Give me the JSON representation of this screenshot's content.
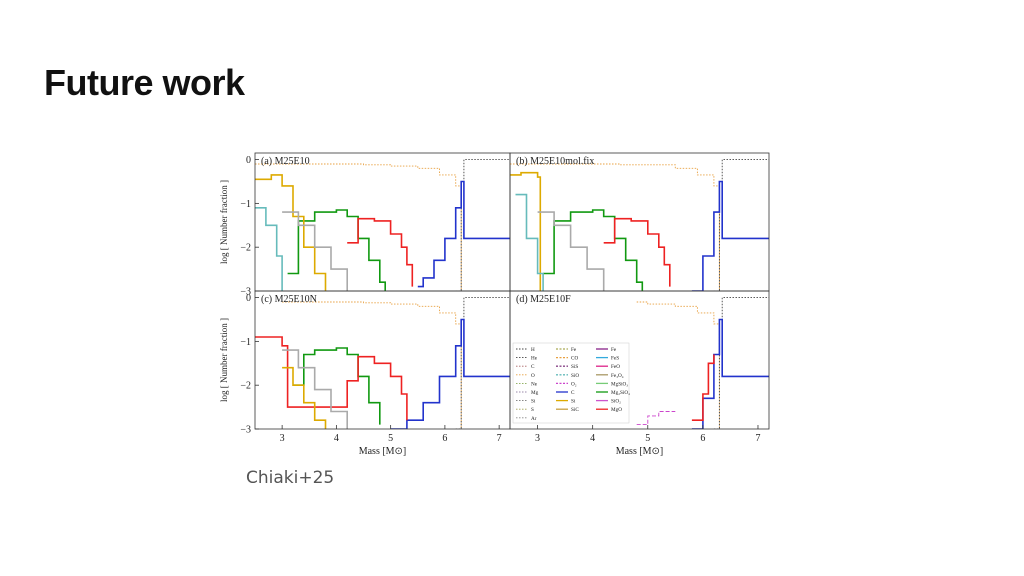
{
  "slide": {
    "title": "Future work",
    "credit": "Chiaki+25"
  },
  "colors": {
    "H": "#444444",
    "He": "#444444",
    "C": "#aa6666",
    "O": "#e8a040",
    "Ne": "#88aa55",
    "Mg": "#9988aa",
    "Si": "#777777",
    "S": "#a0a050",
    "Ar": "#888888",
    "Fe": "#aaaa55",
    "CO": "#e8a040",
    "SiS": "#884488",
    "SiO": "#66bbbb",
    "O2": "#cc44cc",
    "Cdust": "#2233cc",
    "Sidust": "#ddaa00",
    "SiC": "#c8a040",
    "Fedust": "#882288",
    "FeS": "#33aadd",
    "FeO": "#dd2288",
    "Fe3O4": "#aa9966",
    "MgSiO3": "#77cc77",
    "Mg2SiO4": "#119911",
    "SiO2": "#cc55cc",
    "MgO": "#ee2222"
  },
  "chart_data": [
    {
      "type": "line",
      "title": "(a) M25E10",
      "xlabel": "Mass [M⊙]",
      "ylabel": "log [ Number fraction ]",
      "xlim": [
        2.5,
        7.2
      ],
      "ylim": [
        -3,
        0.15
      ],
      "yticks": [
        "0",
        "−1",
        "−2",
        "−3"
      ],
      "series": [
        {
          "name": "CO",
          "style": "dotted",
          "color": "#e8a040",
          "x": [
            2.5,
            3.0,
            3.1,
            3.5,
            4.5,
            5.0,
            5.5,
            5.9,
            6.2,
            6.3
          ],
          "y": [
            -0.1,
            -0.1,
            -0.1,
            -0.1,
            -0.12,
            -0.15,
            -0.2,
            -0.35,
            -0.6,
            -3.0
          ]
        },
        {
          "name": "He",
          "style": "dotted",
          "color": "#444444",
          "x": [
            6.2,
            6.3,
            6.35,
            7.2
          ],
          "y": [
            -3.0,
            -0.5,
            0.0,
            0.0
          ]
        },
        {
          "name": "C",
          "style": "solid",
          "color": "#2233cc",
          "x": [
            5.5,
            5.6,
            5.8,
            6.0,
            6.2,
            6.3,
            6.35,
            7.2
          ],
          "y": [
            -2.9,
            -2.7,
            -2.3,
            -1.8,
            -1.1,
            -0.5,
            -1.8,
            -1.8
          ]
        },
        {
          "name": "Mg2SiO4",
          "style": "solid",
          "color": "#119911",
          "x": [
            3.1,
            3.3,
            3.6,
            4.0,
            4.2,
            4.4,
            4.6,
            4.8,
            4.9
          ],
          "y": [
            -2.6,
            -1.4,
            -1.2,
            -1.15,
            -1.3,
            -1.8,
            -2.3,
            -2.8,
            -3.0
          ]
        },
        {
          "name": "MgO",
          "style": "solid",
          "color": "#ee2222",
          "x": [
            4.2,
            4.4,
            4.7,
            5.0,
            5.2,
            5.3,
            5.4
          ],
          "y": [
            -1.9,
            -1.35,
            -1.4,
            -1.7,
            -2.0,
            -2.4,
            -2.9
          ]
        },
        {
          "name": "Si",
          "style": "solid",
          "color": "#ddaa00",
          "x": [
            2.5,
            2.8,
            3.0,
            3.2,
            3.4,
            3.6,
            3.8
          ],
          "y": [
            -0.45,
            -0.35,
            -0.6,
            -1.3,
            -2.0,
            -2.6,
            -3.0
          ]
        },
        {
          "name": "SiO",
          "style": "solid",
          "color": "#66bbbb",
          "x": [
            2.5,
            2.7,
            2.9,
            3.0
          ],
          "y": [
            -1.1,
            -1.5,
            -2.2,
            -3.0
          ]
        },
        {
          "name": "Fe3O4",
          "style": "solid",
          "color": "#aaaaaa",
          "x": [
            3.0,
            3.3,
            3.6,
            3.9,
            4.2
          ],
          "y": [
            -1.2,
            -1.5,
            -2.0,
            -2.5,
            -3.0
          ]
        }
      ]
    },
    {
      "type": "line",
      "title": "(b) M25E10mol.fix",
      "xlabel": "Mass [M⊙]",
      "xlim": [
        2.5,
        7.2
      ],
      "ylim": [
        -3,
        0.15
      ],
      "series": [
        {
          "name": "CO",
          "style": "dotted",
          "color": "#e8a040",
          "x": [
            2.5,
            3.0,
            3.5,
            4.5,
            5.5,
            5.9,
            6.2,
            6.3
          ],
          "y": [
            -0.1,
            -0.1,
            -0.1,
            -0.12,
            -0.2,
            -0.35,
            -0.6,
            -3.0
          ]
        },
        {
          "name": "He",
          "style": "dotted",
          "color": "#444444",
          "x": [
            6.2,
            6.3,
            6.35,
            7.2
          ],
          "y": [
            -3.0,
            -0.5,
            0.0,
            0.0
          ]
        },
        {
          "name": "C",
          "style": "solid",
          "color": "#2233cc",
          "x": [
            5.8,
            6.0,
            6.2,
            6.3,
            6.35,
            7.2
          ],
          "y": [
            -3.0,
            -2.2,
            -1.2,
            -0.5,
            -1.8,
            -1.8
          ]
        },
        {
          "name": "Mg2SiO4",
          "style": "solid",
          "color": "#119911",
          "x": [
            3.1,
            3.3,
            3.6,
            4.0,
            4.2,
            4.4,
            4.6,
            4.8,
            4.9
          ],
          "y": [
            -2.6,
            -1.4,
            -1.2,
            -1.15,
            -1.3,
            -1.8,
            -2.3,
            -2.8,
            -3.0
          ]
        },
        {
          "name": "MgO",
          "style": "solid",
          "color": "#ee2222",
          "x": [
            4.2,
            4.4,
            4.7,
            5.0,
            5.2,
            5.3,
            5.4
          ],
          "y": [
            -1.9,
            -1.35,
            -1.4,
            -1.7,
            -2.0,
            -2.4,
            -2.9
          ]
        },
        {
          "name": "Si",
          "style": "solid",
          "color": "#ddaa00",
          "x": [
            2.5,
            2.7,
            2.9,
            3.0,
            3.05
          ],
          "y": [
            -0.35,
            -0.3,
            -0.3,
            -0.4,
            -3.0
          ]
        },
        {
          "name": "SiO",
          "style": "solid",
          "color": "#66bbbb",
          "x": [
            2.6,
            2.8,
            3.0,
            3.1
          ],
          "y": [
            -0.8,
            -1.8,
            -2.6,
            -3.0
          ]
        },
        {
          "name": "Fe3O4",
          "style": "solid",
          "color": "#aaaaaa",
          "x": [
            3.0,
            3.3,
            3.6,
            3.9,
            4.2
          ],
          "y": [
            -1.2,
            -1.5,
            -2.0,
            -2.5,
            -3.0
          ]
        }
      ]
    },
    {
      "type": "line",
      "title": "(c) M25E10N",
      "xlabel": "Mass [M⊙]",
      "ylabel": "log [ Number fraction ]",
      "xlim": [
        2.5,
        7.2
      ],
      "ylim": [
        -3,
        0.15
      ],
      "xticks": [
        "3",
        "4",
        "5",
        "6",
        "7"
      ],
      "yticks": [
        "0",
        "−1",
        "−2",
        "−3"
      ],
      "series": [
        {
          "name": "CO",
          "style": "dotted",
          "color": "#e8a040",
          "x": [
            3.0,
            3.5,
            4.5,
            5.0,
            5.5,
            5.9,
            6.2,
            6.3
          ],
          "y": [
            -0.1,
            -0.1,
            -0.12,
            -0.15,
            -0.2,
            -0.35,
            -0.6,
            -3.0
          ]
        },
        {
          "name": "He",
          "style": "dotted",
          "color": "#444444",
          "x": [
            6.2,
            6.3,
            6.35,
            7.2
          ],
          "y": [
            -3.0,
            -0.5,
            0.0,
            0.0
          ]
        },
        {
          "name": "C",
          "style": "solid",
          "color": "#2233cc",
          "x": [
            5.0,
            5.3,
            5.6,
            5.9,
            6.2,
            6.3,
            6.35,
            7.2
          ],
          "y": [
            -3.0,
            -2.8,
            -2.4,
            -1.8,
            -1.1,
            -0.5,
            -1.8,
            -1.8
          ]
        },
        {
          "name": "Mg2SiO4",
          "style": "solid",
          "color": "#119911",
          "x": [
            3.2,
            3.4,
            3.6,
            4.0,
            4.2,
            4.4,
            4.6,
            4.8
          ],
          "y": [
            -2.0,
            -1.3,
            -1.2,
            -1.15,
            -1.3,
            -1.8,
            -2.4,
            -2.9
          ]
        },
        {
          "name": "MgO",
          "style": "solid",
          "color": "#ee2222",
          "x": [
            2.5,
            2.8,
            3.0,
            3.1,
            4.2,
            4.4,
            4.7,
            5.0,
            5.2,
            5.3
          ],
          "y": [
            -0.9,
            -0.9,
            -1.1,
            -2.5,
            -1.9,
            -1.35,
            -1.5,
            -1.8,
            -2.2,
            -2.8
          ]
        },
        {
          "name": "Si",
          "style": "solid",
          "color": "#ddaa00",
          "x": [
            3.0,
            3.2,
            3.4,
            3.6,
            3.8
          ],
          "y": [
            -1.6,
            -2.0,
            -2.4,
            -2.8,
            -3.0
          ]
        },
        {
          "name": "Fe3O4",
          "style": "solid",
          "color": "#aaaaaa",
          "x": [
            3.0,
            3.3,
            3.6,
            3.9,
            4.2
          ],
          "y": [
            -1.2,
            -1.6,
            -2.1,
            -2.6,
            -3.0
          ]
        }
      ]
    },
    {
      "type": "line",
      "title": "(d) M25E10F",
      "xlabel": "Mass [M⊙]",
      "xlim": [
        2.5,
        7.2
      ],
      "ylim": [
        -3,
        0.15
      ],
      "xticks": [
        "3",
        "4",
        "5",
        "6",
        "7"
      ],
      "legend_col1": [
        "H",
        "He",
        "C",
        "O",
        "Ne",
        "Mg",
        "Si",
        "S",
        "Ar"
      ],
      "legend_col2": [
        "Fe",
        "CO",
        "SiS",
        "SiO",
        "O₂",
        "C",
        "Si",
        "SiC"
      ],
      "legend_col3": [
        "Fe",
        "FeS",
        "FeO",
        "Fe₃O₄",
        "MgSiO₃",
        "Mg₂SiO₄",
        "SiO₂",
        "MgO"
      ],
      "series": [
        {
          "name": "CO",
          "style": "dotted",
          "color": "#e8a040",
          "x": [
            4.8,
            5.0,
            5.5,
            5.9,
            6.2,
            6.3
          ],
          "y": [
            -0.1,
            -0.15,
            -0.2,
            -0.35,
            -0.6,
            -3.0
          ]
        },
        {
          "name": "He",
          "style": "dotted",
          "color": "#444444",
          "x": [
            6.2,
            6.3,
            6.35,
            7.2
          ],
          "y": [
            -3.0,
            -0.5,
            0.0,
            0.0
          ]
        },
        {
          "name": "C",
          "style": "solid",
          "color": "#2233cc",
          "x": [
            5.8,
            6.0,
            6.2,
            6.3,
            6.35,
            7.2
          ],
          "y": [
            -3.0,
            -2.3,
            -1.3,
            -0.5,
            -1.8,
            -1.8
          ]
        },
        {
          "name": "MgO",
          "style": "solid",
          "color": "#ee2222",
          "x": [
            5.8,
            6.0,
            6.1,
            6.2
          ],
          "y": [
            -2.8,
            -2.2,
            -1.5,
            -1.3
          ]
        },
        {
          "name": "SiO2",
          "style": "dashed",
          "color": "#cc44cc",
          "x": [
            4.8,
            5.0,
            5.2,
            5.5
          ],
          "y": [
            -2.9,
            -2.7,
            -2.6,
            -2.6
          ]
        }
      ]
    }
  ]
}
